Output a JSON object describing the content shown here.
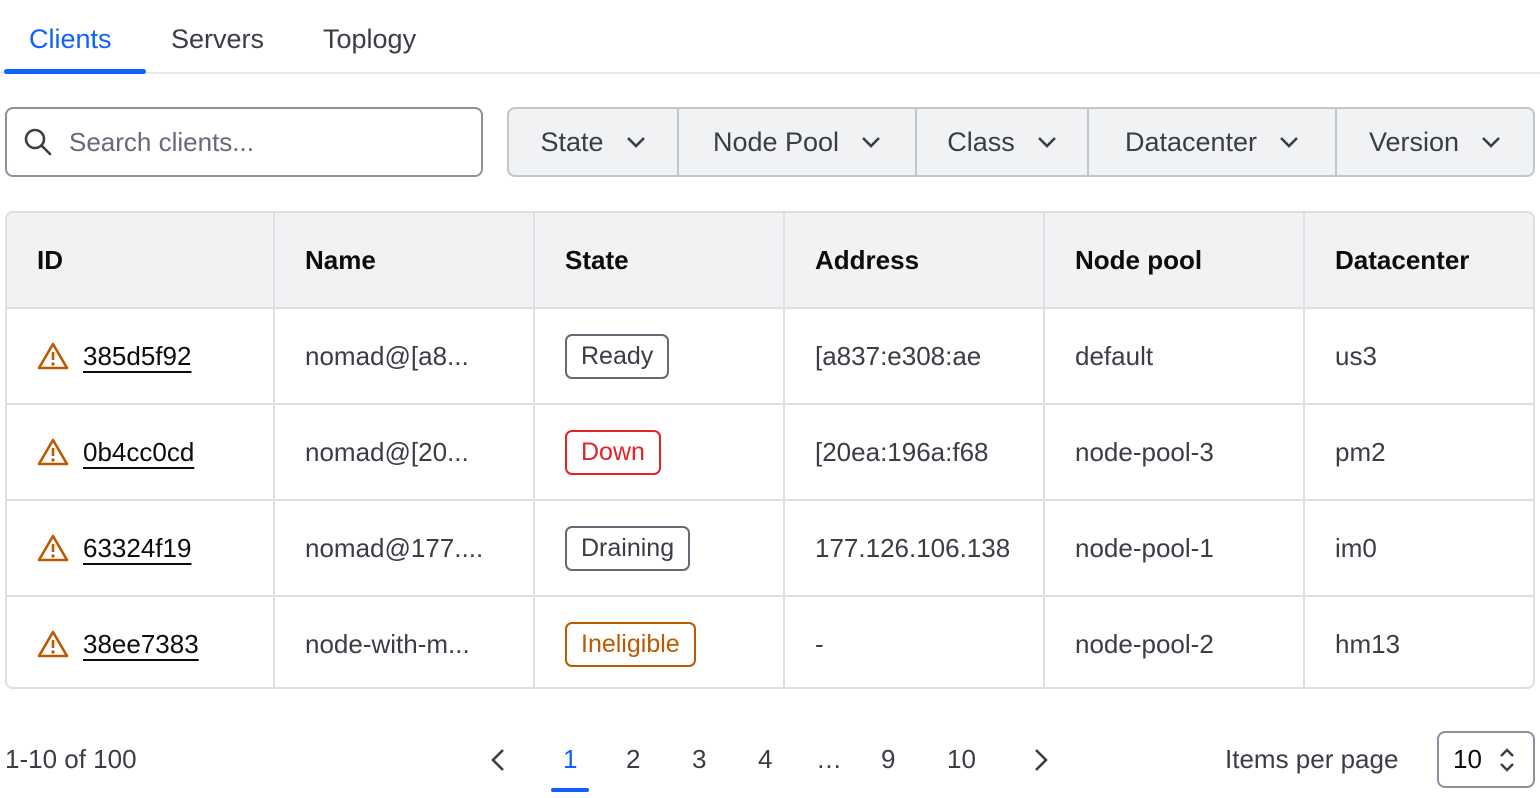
{
  "tabs": [
    {
      "label": "Clients",
      "active": true
    },
    {
      "label": "Servers"
    },
    {
      "label": "Toplogy"
    }
  ],
  "search": {
    "placeholder": "Search clients...",
    "value": ""
  },
  "filters": [
    "State",
    "Node Pool",
    "Class",
    "Datacenter",
    "Version"
  ],
  "table": {
    "columns": [
      "ID",
      "Name",
      "State",
      "Address",
      "Node pool",
      "Datacenter"
    ],
    "rows": [
      {
        "id": "385d5f92",
        "name": "nomad@[a8...",
        "state": "Ready",
        "address": "[a837:e308:ae",
        "node_pool": "default",
        "datacenter": "us3",
        "warning": true
      },
      {
        "id": "0b4cc0cd",
        "name": "nomad@[20...",
        "state": "Down",
        "address": "[20ea:196a:f68",
        "node_pool": "node-pool-3",
        "datacenter": "pm2",
        "warning": true
      },
      {
        "id": "63324f19",
        "name": "nomad@177....",
        "state": "Draining",
        "address": "177.126.106.138",
        "node_pool": "node-pool-1",
        "datacenter": "im0",
        "warning": true
      },
      {
        "id": "38ee7383",
        "name": "node-with-m...",
        "state": "Ineligible",
        "address": "-",
        "node_pool": "node-pool-2",
        "datacenter": "hm13",
        "warning": true
      }
    ]
  },
  "pagination": {
    "summary": "1-10 of 100",
    "pages": [
      "1",
      "2",
      "3",
      "4",
      "…",
      "9",
      "10"
    ],
    "current": "1",
    "items_per_page_label": "Items per page",
    "items_per_page": "10"
  },
  "colors": {
    "accent": "#1060ff",
    "warning": "#bb5a00",
    "danger": "#e52228"
  }
}
